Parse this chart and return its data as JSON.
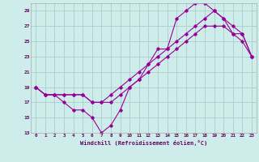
{
  "xlabel": "Windchill (Refroidissement éolien,°C)",
  "bg_color": "#ceecea",
  "grid_color": "#aacccc",
  "line_color": "#990099",
  "xlim": [
    -0.5,
    23.5
  ],
  "ylim": [
    13,
    30
  ],
  "xticks": [
    0,
    1,
    2,
    3,
    4,
    5,
    6,
    7,
    8,
    9,
    10,
    11,
    12,
    13,
    14,
    15,
    16,
    17,
    18,
    19,
    20,
    21,
    22,
    23
  ],
  "yticks": [
    13,
    15,
    17,
    19,
    21,
    23,
    25,
    27,
    29
  ],
  "line1_x": [
    0,
    1,
    2,
    3,
    4,
    5,
    6,
    7,
    8,
    9,
    10,
    11,
    12,
    13,
    14,
    15,
    16,
    17,
    18,
    19,
    20,
    21,
    22,
    23
  ],
  "line1_y": [
    19,
    18,
    18,
    17,
    16,
    16,
    15,
    13,
    14,
    16,
    19,
    20,
    22,
    24,
    24,
    28,
    29,
    30,
    30,
    29,
    28,
    26,
    25,
    23
  ],
  "line2_x": [
    0,
    1,
    2,
    3,
    4,
    5,
    6,
    7,
    8,
    9,
    10,
    11,
    12,
    13,
    14,
    15,
    16,
    17,
    18,
    19,
    20,
    21,
    22,
    23
  ],
  "line2_y": [
    19,
    18,
    18,
    18,
    18,
    18,
    17,
    17,
    18,
    19,
    20,
    21,
    22,
    23,
    24,
    25,
    26,
    27,
    28,
    29,
    28,
    27,
    26,
    23
  ],
  "line3_x": [
    0,
    1,
    2,
    3,
    4,
    5,
    6,
    7,
    8,
    9,
    10,
    11,
    12,
    13,
    14,
    15,
    16,
    17,
    18,
    19,
    20,
    21,
    22,
    23
  ],
  "line3_y": [
    19,
    18,
    18,
    18,
    18,
    18,
    17,
    17,
    17,
    18,
    19,
    20,
    21,
    22,
    23,
    24,
    25,
    26,
    27,
    27,
    27,
    26,
    26,
    23
  ]
}
